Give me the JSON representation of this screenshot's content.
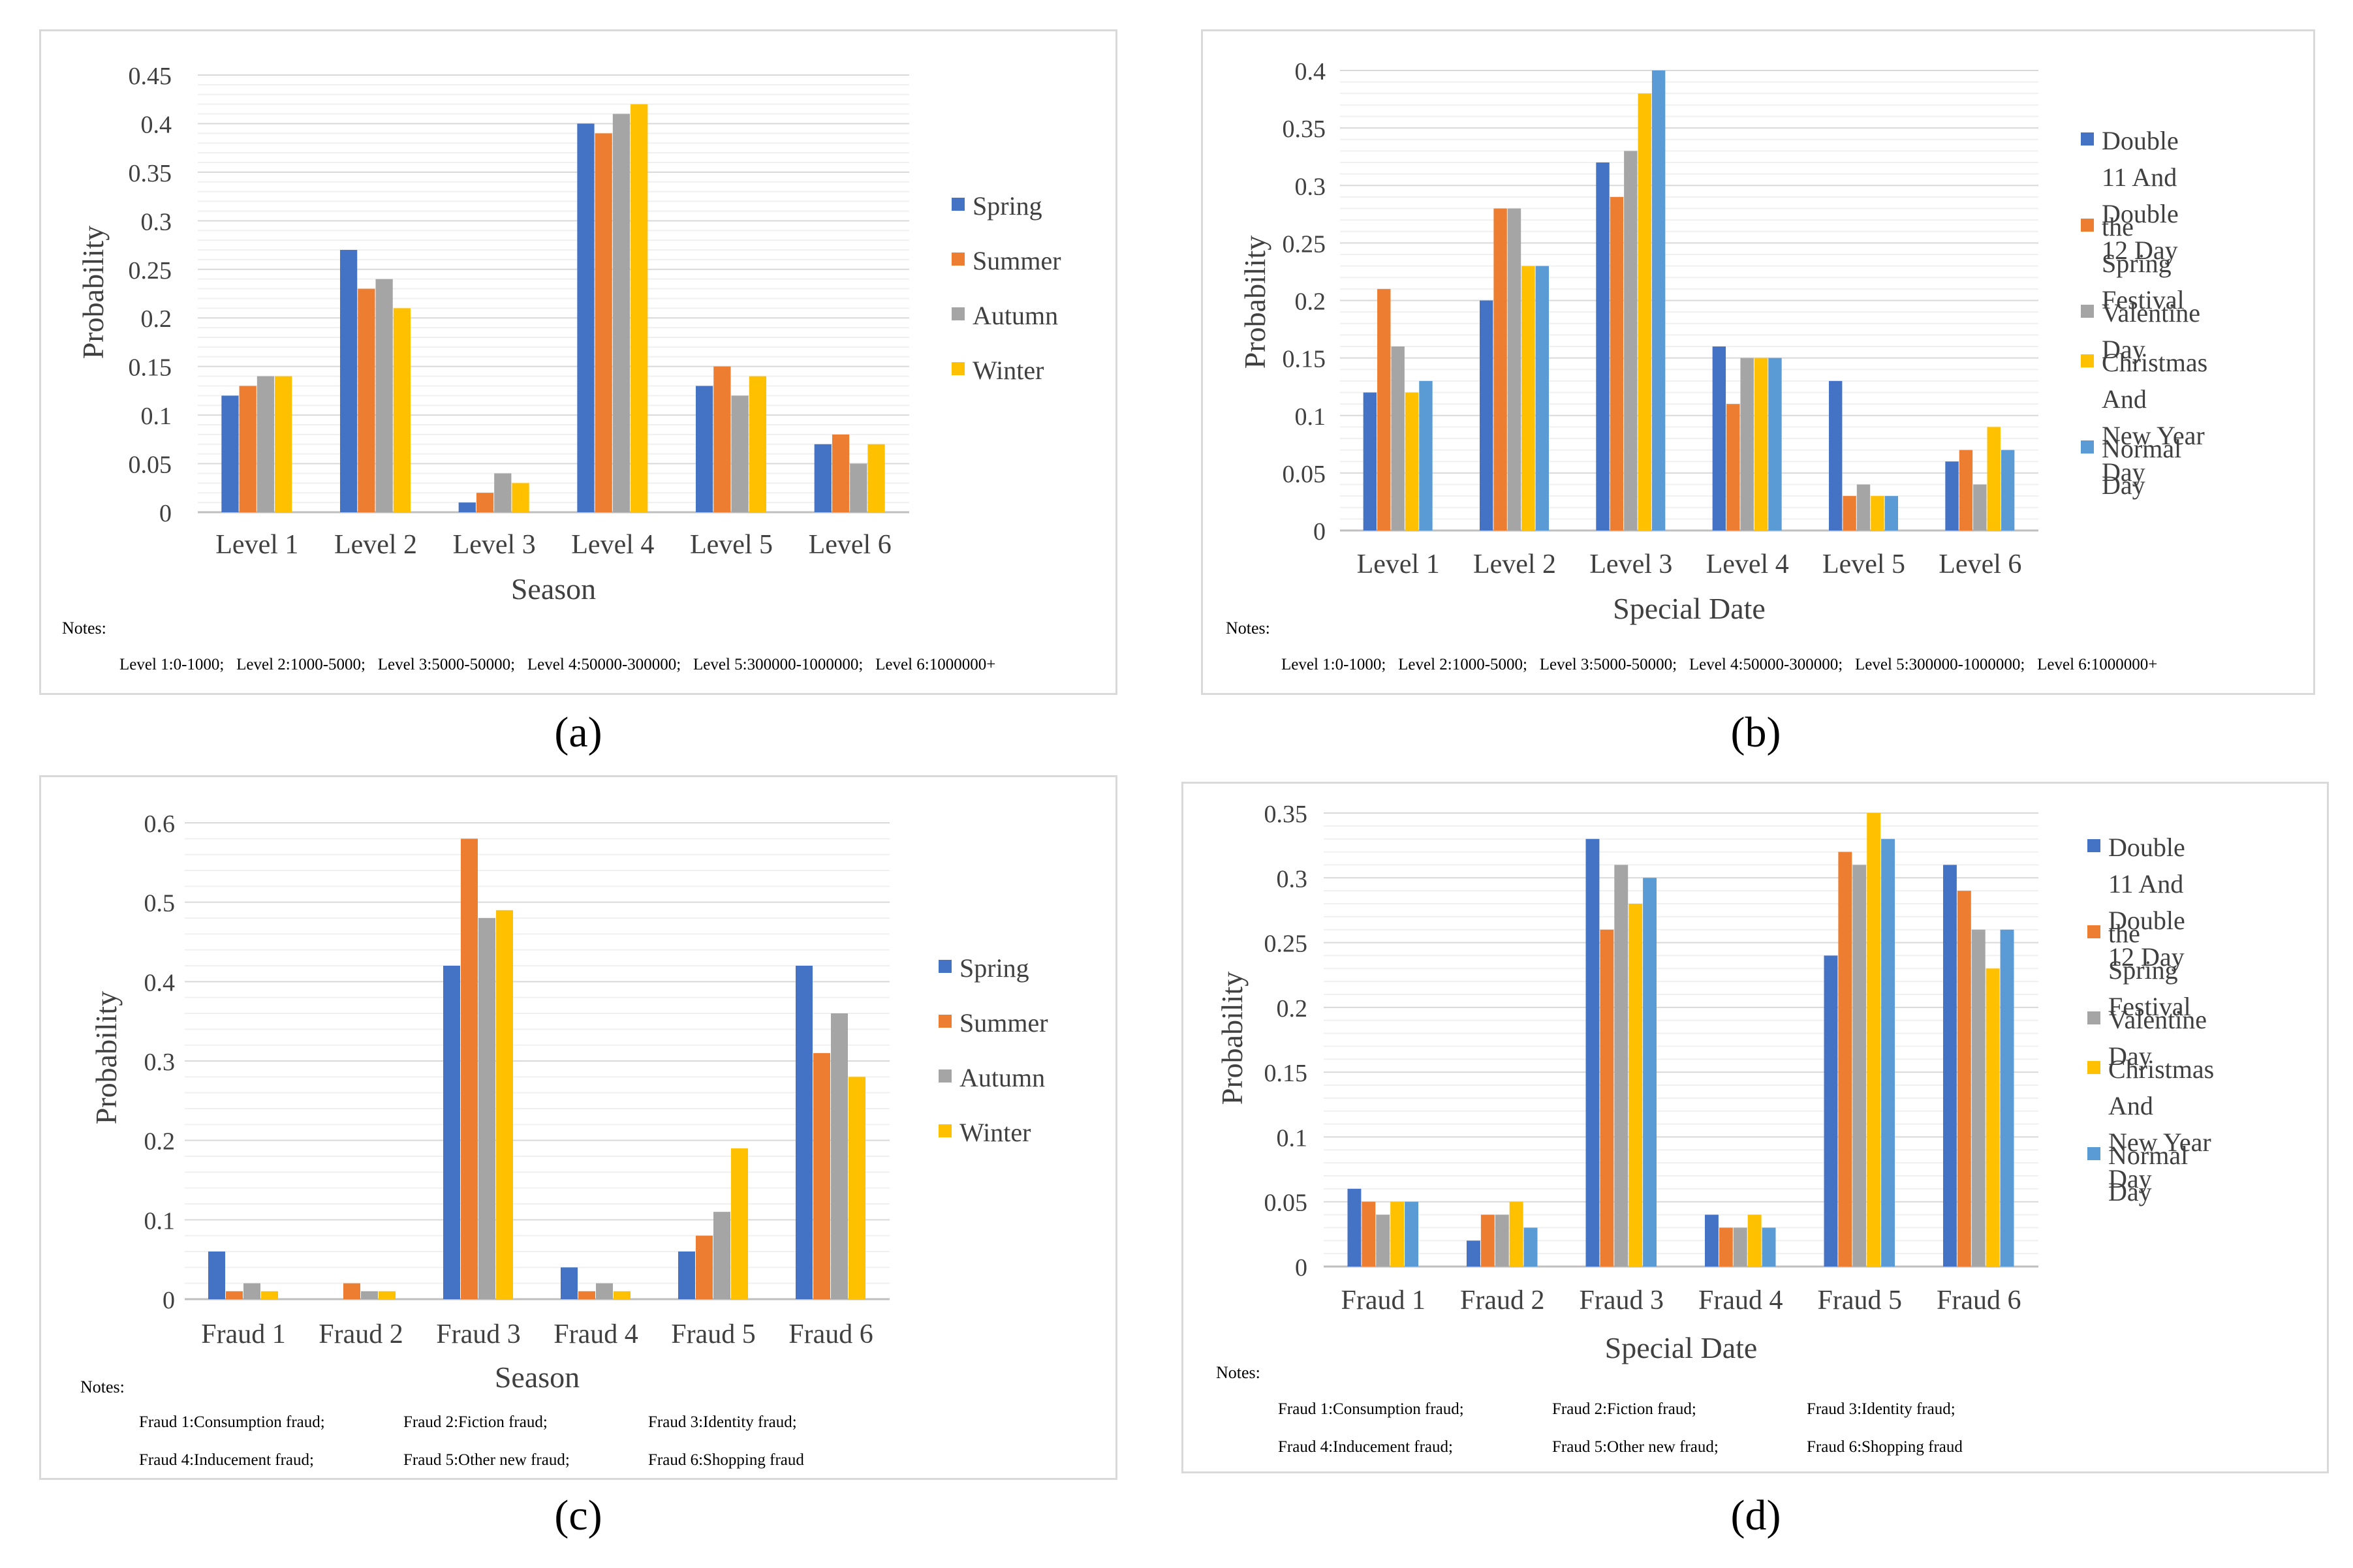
{
  "colors": {
    "blue": "#4472c4",
    "orange": "#ed7d31",
    "gray": "#a5a5a5",
    "yellow": "#ffc000",
    "lightblue": "#5b9bd5",
    "grid": "#d9d9d9",
    "axis": "#bfbfbf"
  },
  "panels": [
    {
      "id": "a",
      "label": "(a)"
    },
    {
      "id": "b",
      "label": "(b)"
    },
    {
      "id": "c",
      "label": "(c)"
    },
    {
      "id": "d",
      "label": "(d)"
    }
  ],
  "notes": {
    "title": "Notes:",
    "level_line": "Level 1:0-1000;   Level 2:1000-5000;   Level 3:5000-50000;   Level 4:50000-300000;   Level 5:300000-1000000;   Level 6:1000000+",
    "fraud_line1": [
      "Fraud 1:Consumption fraud;",
      "Fraud 2:Fiction fraud;",
      "Fraud 3:Identity fraud;"
    ],
    "fraud_line2": [
      "Fraud 4:Inducement fraud;",
      "Fraud 5:Other new fraud;",
      "Fraud 6:Shopping fraud"
    ]
  },
  "chart_data": [
    {
      "type": "bar",
      "panel": "a",
      "title": "",
      "xlabel": "Season",
      "ylabel": "Probability",
      "ylim": [
        0,
        0.45
      ],
      "yticks": [
        "0",
        "0.05",
        "0.1",
        "0.15",
        "0.2",
        "0.25",
        "0.3",
        "0.35",
        "0.4",
        "0.45"
      ],
      "categories": [
        "Level 1",
        "Level 2",
        "Level 3",
        "Level 4",
        "Level 5",
        "Level 6"
      ],
      "legend_position": "right",
      "series": [
        {
          "name": "Spring",
          "color": "#4472c4",
          "values": [
            0.12,
            0.27,
            0.01,
            0.4,
            0.13,
            0.07
          ]
        },
        {
          "name": "Summer",
          "color": "#ed7d31",
          "values": [
            0.13,
            0.23,
            0.02,
            0.39,
            0.15,
            0.08
          ]
        },
        {
          "name": "Autumn",
          "color": "#a5a5a5",
          "values": [
            0.14,
            0.24,
            0.04,
            0.41,
            0.12,
            0.05
          ]
        },
        {
          "name": "Winter",
          "color": "#ffc000",
          "values": [
            0.14,
            0.21,
            0.03,
            0.42,
            0.14,
            0.07
          ]
        }
      ]
    },
    {
      "type": "bar",
      "panel": "b",
      "title": "",
      "xlabel": "Special Date",
      "ylabel": "Probability",
      "ylim": [
        0,
        0.4
      ],
      "yticks": [
        "0",
        "0.05",
        "0.1",
        "0.15",
        "0.2",
        "0.25",
        "0.3",
        "0.35",
        "0.4"
      ],
      "categories": [
        "Level 1",
        "Level 2",
        "Level 3",
        "Level 4",
        "Level 5",
        "Level 6"
      ],
      "legend_position": "right",
      "series": [
        {
          "name": "Double 11 And\nDouble 12 Day",
          "color": "#4472c4",
          "values": [
            0.12,
            0.2,
            0.32,
            0.16,
            0.13,
            0.06
          ]
        },
        {
          "name": "the Spring\nFestival",
          "color": "#ed7d31",
          "values": [
            0.21,
            0.28,
            0.29,
            0.11,
            0.03,
            0.07
          ]
        },
        {
          "name": "Valentine Day",
          "color": "#a5a5a5",
          "values": [
            0.16,
            0.28,
            0.33,
            0.15,
            0.04,
            0.04
          ]
        },
        {
          "name": "Christmas And\nNew Year Day",
          "color": "#ffc000",
          "values": [
            0.12,
            0.23,
            0.38,
            0.15,
            0.03,
            0.09
          ]
        },
        {
          "name": "Normal Day",
          "color": "#5b9bd5",
          "values": [
            0.13,
            0.23,
            0.4,
            0.15,
            0.03,
            0.07
          ]
        }
      ]
    },
    {
      "type": "bar",
      "panel": "c",
      "title": "",
      "xlabel": "Season",
      "ylabel": "Probability",
      "ylim": [
        0,
        0.6
      ],
      "yticks": [
        "0",
        "0.1",
        "0.2",
        "0.3",
        "0.4",
        "0.5",
        "0.6"
      ],
      "categories": [
        "Fraud 1",
        "Fraud 2",
        "Fraud 3",
        "Fraud 4",
        "Fraud 5",
        "Fraud 6"
      ],
      "legend_position": "right",
      "series": [
        {
          "name": "Spring",
          "color": "#4472c4",
          "values": [
            0.06,
            0.0,
            0.42,
            0.04,
            0.06,
            0.42
          ]
        },
        {
          "name": "Summer",
          "color": "#ed7d31",
          "values": [
            0.01,
            0.02,
            0.58,
            0.01,
            0.08,
            0.31
          ]
        },
        {
          "name": "Autumn",
          "color": "#a5a5a5",
          "values": [
            0.02,
            0.01,
            0.48,
            0.02,
            0.11,
            0.36
          ]
        },
        {
          "name": "Winter",
          "color": "#ffc000",
          "values": [
            0.01,
            0.01,
            0.49,
            0.01,
            0.19,
            0.28
          ]
        }
      ]
    },
    {
      "type": "bar",
      "panel": "d",
      "title": "",
      "xlabel": "Special Date",
      "ylabel": "Probability",
      "ylim": [
        0,
        0.35
      ],
      "yticks": [
        "0",
        "0.05",
        "0.1",
        "0.15",
        "0.2",
        "0.25",
        "0.3",
        "0.35"
      ],
      "categories": [
        "Fraud 1",
        "Fraud 2",
        "Fraud 3",
        "Fraud 4",
        "Fraud 5",
        "Fraud 6"
      ],
      "legend_position": "right",
      "series": [
        {
          "name": "Double 11 And\nDouble 12 Day",
          "color": "#4472c4",
          "values": [
            0.06,
            0.02,
            0.33,
            0.04,
            0.24,
            0.31
          ]
        },
        {
          "name": "the Spring\nFestival",
          "color": "#ed7d31",
          "values": [
            0.05,
            0.04,
            0.26,
            0.03,
            0.32,
            0.29
          ]
        },
        {
          "name": "Valentine Day",
          "color": "#a5a5a5",
          "values": [
            0.04,
            0.04,
            0.31,
            0.03,
            0.31,
            0.26
          ]
        },
        {
          "name": "Christmas And\nNew Year Day",
          "color": "#ffc000",
          "values": [
            0.05,
            0.05,
            0.28,
            0.04,
            0.35,
            0.23
          ]
        },
        {
          "name": "Normal Day",
          "color": "#5b9bd5",
          "values": [
            0.05,
            0.03,
            0.3,
            0.03,
            0.33,
            0.26
          ]
        }
      ]
    }
  ]
}
